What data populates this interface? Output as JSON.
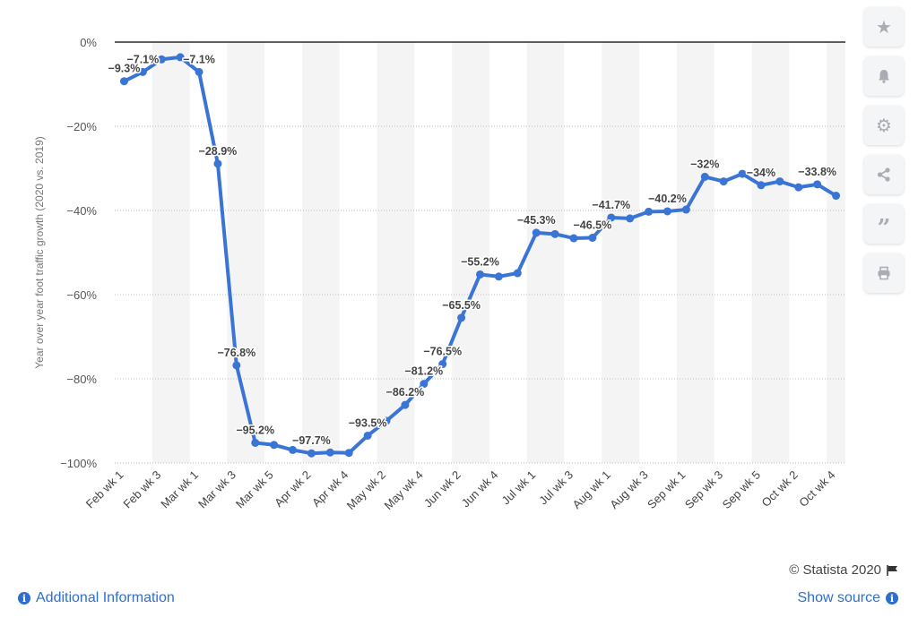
{
  "chart_data": {
    "type": "line",
    "title": "",
    "ylabel": "Year over year foot traffic growth (2020 vs. 2019)",
    "xlabel": "",
    "ylim": [
      -100,
      0
    ],
    "yticks": [
      0,
      -20,
      -40,
      -60,
      -80,
      -100
    ],
    "ytick_labels": [
      "0%",
      "−20%",
      "−40%",
      "−60%",
      "−80%",
      "−100%"
    ],
    "grid": true,
    "legend": "none",
    "categories": [
      "Feb wk 1",
      "Feb wk 2",
      "Feb wk 3",
      "Feb wk 4",
      "Mar wk 1",
      "Mar wk 2",
      "Mar wk 3",
      "Mar wk 4",
      "Mar wk 5",
      "Apr wk 1",
      "Apr wk 2",
      "Apr wk 3",
      "Apr wk 4",
      "May wk 1",
      "May wk 2",
      "May wk 3",
      "May wk 4",
      "Jun wk 1",
      "Jun wk 2",
      "Jun wk 3",
      "Jun wk 4",
      "Jun wk 5",
      "Jul wk 1",
      "Jul wk 2",
      "Jul wk 3",
      "Jul wk 4",
      "Aug wk 1",
      "Aug wk 2",
      "Aug wk 3",
      "Aug wk 4",
      "Sep wk 1",
      "Sep wk 2",
      "Sep wk 3",
      "Sep wk 4",
      "Sep wk 5",
      "Oct wk 1",
      "Oct wk 2",
      "Oct wk 3",
      "Oct wk 4"
    ],
    "visible_tick_labels": [
      "Feb wk 1",
      "Feb wk 3",
      "Mar wk 1",
      "Mar wk 3",
      "Mar wk 5",
      "Apr wk 2",
      "Apr wk 4",
      "May wk 2",
      "May wk 4",
      "Jun wk 2",
      "Jun wk 4",
      "Jul wk 1",
      "Jul wk 3",
      "Aug wk 1",
      "Aug wk 3",
      "Sep wk 1",
      "Sep wk 3",
      "Sep wk 5",
      "Oct wk 2",
      "Oct wk 4"
    ],
    "series": [
      {
        "values": [
          -9.3,
          -7.1,
          -4.1,
          -3.6,
          -7.1,
          -28.9,
          -76.8,
          -95.2,
          -95.7,
          -96.9,
          -97.7,
          -97.5,
          -97.6,
          -93.5,
          -90.0,
          -86.2,
          -81.2,
          -76.5,
          -65.5,
          -55.2,
          -55.7,
          -54.9,
          -45.3,
          -45.6,
          -46.6,
          -46.5,
          -41.7,
          -41.9,
          -40.3,
          -40.2,
          -39.8,
          -32.0,
          -33.1,
          -31.3,
          -34.0,
          -33.1,
          -34.5,
          -33.8,
          -36.5
        ],
        "data_labels": [
          "−9.3%",
          "−7.1%",
          "",
          "",
          "−7.1%",
          "−28.9%",
          "−76.8%",
          "−95.2%",
          "",
          "",
          "−97.7%",
          "",
          "",
          "−93.5%",
          "",
          "−86.2%",
          "−81.2%",
          "−76.5%",
          "−65.5%",
          "−55.2%",
          "",
          "",
          "−45.3%",
          "",
          "",
          "−46.5%",
          "−41.7%",
          "",
          "",
          "−40.2%",
          "",
          "−32%",
          "",
          "",
          "−34%",
          "",
          "",
          "−33.8%",
          ""
        ]
      }
    ],
    "line_color": "#3a74d4"
  },
  "toolbar": {
    "icons": [
      "star-icon",
      "bell-icon",
      "gear-icon",
      "share-icon",
      "quote-icon",
      "print-icon"
    ]
  },
  "footer": {
    "credit": "© Statista 2020",
    "additional_info": "Additional Information",
    "show_source": "Show source"
  }
}
